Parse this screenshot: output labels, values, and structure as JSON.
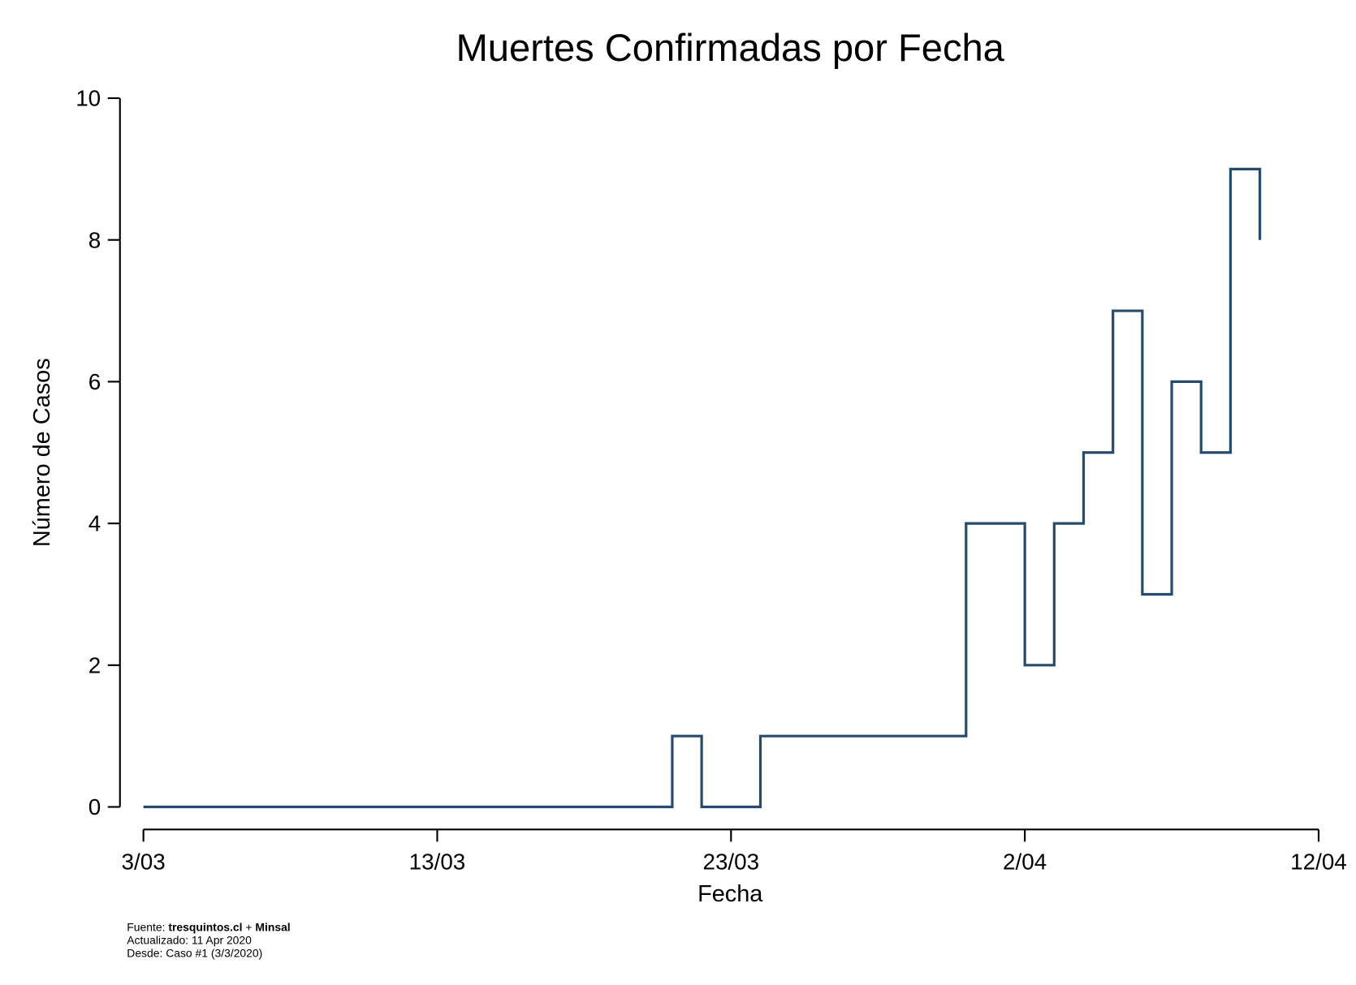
{
  "chart_data": {
    "type": "line",
    "step": true,
    "title": "Muertes Confirmadas por Fecha",
    "xlabel": "Fecha",
    "ylabel": "Número de Casos",
    "x": [
      "3/03",
      "4/03",
      "5/03",
      "6/03",
      "7/03",
      "8/03",
      "9/03",
      "10/03",
      "11/03",
      "12/03",
      "13/03",
      "14/03",
      "15/03",
      "16/03",
      "17/03",
      "18/03",
      "19/03",
      "20/03",
      "21/03",
      "22/03",
      "23/03",
      "24/03",
      "25/03",
      "26/03",
      "27/03",
      "28/03",
      "29/03",
      "30/03",
      "31/03",
      "1/04",
      "2/04",
      "3/04",
      "4/04",
      "5/04",
      "6/04",
      "7/04",
      "8/04",
      "9/04",
      "10/04"
    ],
    "series": [
      {
        "color": "#274a6f",
        "values": [
          0,
          0,
          0,
          0,
          0,
          0,
          0,
          0,
          0,
          0,
          0,
          0,
          0,
          0,
          0,
          0,
          0,
          0,
          1,
          0,
          0,
          1,
          1,
          1,
          1,
          1,
          1,
          1,
          4,
          4,
          2,
          4,
          5,
          7,
          3,
          6,
          5,
          9,
          8
        ]
      }
    ],
    "xlim": [
      "3/03",
      "12/04"
    ],
    "xticks": [
      "3/03",
      "13/03",
      "23/03",
      "2/04",
      "12/04"
    ],
    "ylim": [
      0,
      10
    ],
    "yticks": [
      0,
      2,
      4,
      6,
      8,
      10
    ],
    "grid": false
  },
  "footer": {
    "source_label": "Fuente:",
    "source_1": "tresquintos.cl",
    "source_sep": "+",
    "source_2": "Minsal",
    "updated": "Actualizado: 11 Apr 2020",
    "since": "Desde: Caso #1 (3/3/2020)"
  }
}
